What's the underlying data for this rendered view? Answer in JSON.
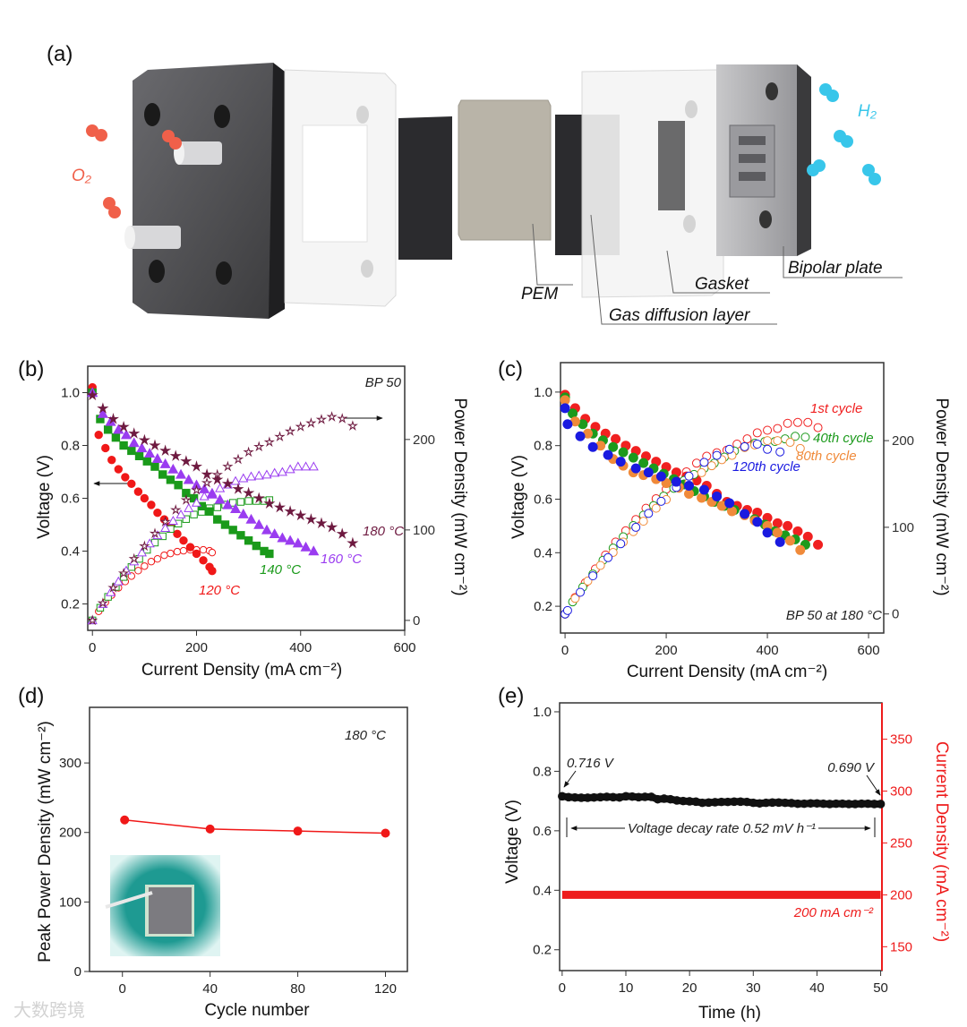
{
  "panel_labels": {
    "a": "(a)",
    "b": "(b)",
    "c": "(c)",
    "d": "(d)",
    "e": "(e)"
  },
  "panel_a": {
    "labels": {
      "pem": "PEM",
      "gasket": "Gasket",
      "bipolar_plate": "Bipolar plate",
      "gdl": "Gas diffusion layer",
      "o2": "O₂",
      "h2": "H₂"
    },
    "colors": {
      "oxygen": "#f0604a",
      "hydrogen": "#38c6ea",
      "plate": "#4a4a4c",
      "gdl": "#2b2b2e",
      "pem": "#b9b4a8"
    }
  },
  "watermark": "大数跨境",
  "chart_data": [
    {
      "id": "b",
      "type": "scatter",
      "xlabel": "Current Density (mA cm⁻²)",
      "ylabel": "Voltage (V)",
      "y2label": "Power Density (mW cm⁻²)",
      "xlim": [
        -9,
        600
      ],
      "ylim": [
        0.1,
        1.1
      ],
      "y2lim": [
        -11,
        281
      ],
      "xticks": [
        0,
        200,
        400,
        600
      ],
      "yticks": [
        0.2,
        0.4,
        0.6,
        0.8,
        1.0
      ],
      "y2ticks": [
        0,
        100,
        200
      ],
      "annotations": {
        "sample": "BP 50"
      },
      "series": [
        {
          "name": "120 °C",
          "color": "#f01818",
          "marker": "circle",
          "x": [
            0,
            12,
            25,
            37,
            50,
            63,
            75,
            88,
            100,
            113,
            125,
            138,
            150,
            163,
            175,
            188,
            200,
            213,
            225,
            230
          ],
          "voltage": [
            1.02,
            0.84,
            0.79,
            0.745,
            0.71,
            0.68,
            0.655,
            0.625,
            0.6,
            0.575,
            0.545,
            0.52,
            0.495,
            0.465,
            0.44,
            0.415,
            0.39,
            0.365,
            0.34,
            0.325
          ],
          "power": [
            0,
            10,
            20,
            28,
            36,
            43,
            49,
            55,
            60,
            65,
            68,
            72,
            74,
            76,
            77,
            78,
            78,
            78,
            77,
            75
          ]
        },
        {
          "name": "140 °C",
          "color": "#1a9a1a",
          "marker": "square",
          "x": [
            0,
            15,
            30,
            45,
            60,
            75,
            90,
            105,
            120,
            135,
            150,
            165,
            180,
            195,
            210,
            225,
            240,
            255,
            270,
            285,
            300,
            315,
            330,
            340
          ],
          "voltage": [
            1.0,
            0.9,
            0.86,
            0.83,
            0.8,
            0.78,
            0.76,
            0.74,
            0.72,
            0.69,
            0.67,
            0.65,
            0.62,
            0.6,
            0.57,
            0.55,
            0.52,
            0.5,
            0.48,
            0.46,
            0.44,
            0.42,
            0.4,
            0.39
          ],
          "power": [
            0,
            14,
            26,
            37,
            48,
            59,
            68,
            78,
            86,
            93,
            101,
            107,
            112,
            117,
            120,
            124,
            125,
            128,
            130,
            131,
            132,
            132,
            132,
            133
          ]
        },
        {
          "name": "160 °C",
          "color": "#9a3cf0",
          "marker": "triangle",
          "x": [
            0,
            20,
            35,
            50,
            65,
            80,
            95,
            110,
            125,
            140,
            155,
            170,
            185,
            200,
            215,
            230,
            245,
            260,
            275,
            290,
            305,
            320,
            335,
            350,
            365,
            380,
            395,
            410,
            425
          ],
          "voltage": [
            1.0,
            0.92,
            0.89,
            0.86,
            0.84,
            0.81,
            0.79,
            0.77,
            0.75,
            0.73,
            0.71,
            0.69,
            0.67,
            0.65,
            0.635,
            0.615,
            0.595,
            0.575,
            0.56,
            0.54,
            0.52,
            0.5,
            0.48,
            0.465,
            0.45,
            0.44,
            0.43,
            0.415,
            0.4
          ],
          "power": [
            0,
            18,
            31,
            43,
            55,
            65,
            75,
            85,
            94,
            102,
            110,
            117,
            124,
            130,
            137,
            141,
            146,
            150,
            154,
            157,
            159,
            160,
            161,
            163,
            164,
            167,
            170,
            170,
            170
          ]
        },
        {
          "name": "180 °C",
          "color": "#6e1a40",
          "marker": "star",
          "x": [
            0,
            20,
            40,
            60,
            80,
            100,
            120,
            140,
            160,
            180,
            200,
            220,
            240,
            260,
            280,
            300,
            320,
            340,
            360,
            380,
            400,
            420,
            440,
            460,
            480,
            500
          ],
          "voltage": [
            0.99,
            0.94,
            0.9,
            0.87,
            0.845,
            0.82,
            0.8,
            0.78,
            0.76,
            0.74,
            0.72,
            0.69,
            0.67,
            0.655,
            0.635,
            0.62,
            0.6,
            0.58,
            0.565,
            0.55,
            0.535,
            0.52,
            0.505,
            0.49,
            0.465,
            0.43
          ],
          "power": [
            0,
            19,
            36,
            52,
            68,
            82,
            96,
            109,
            122,
            133,
            144,
            152,
            161,
            170,
            178,
            186,
            192,
            197,
            203,
            209,
            214,
            218,
            222,
            225,
            223,
            215
          ]
        }
      ]
    },
    {
      "id": "c",
      "type": "scatter",
      "xlabel": "Current Density (mA cm⁻²)",
      "ylabel": "Voltage (V)",
      "y2label": "Power Density (mW cm⁻²)",
      "xlim": [
        -9,
        630
      ],
      "ylim": [
        0.1,
        1.11
      ],
      "y2lim": [
        -22,
        290
      ],
      "xticks": [
        0,
        200,
        400,
        600
      ],
      "yticks": [
        0.2,
        0.4,
        0.6,
        0.8,
        1.0
      ],
      "y2ticks": [
        0,
        100,
        200
      ],
      "annotations": {
        "sample": "BP 50 at 180 °C"
      },
      "series": [
        {
          "name": "1st cycle",
          "color": "#f02020",
          "x": [
            0,
            20,
            40,
            60,
            80,
            100,
            120,
            140,
            160,
            180,
            200,
            220,
            240,
            260,
            280,
            300,
            320,
            340,
            360,
            380,
            400,
            420,
            440,
            460,
            480,
            500
          ],
          "voltage": [
            0.99,
            0.94,
            0.9,
            0.87,
            0.845,
            0.825,
            0.8,
            0.78,
            0.76,
            0.74,
            0.72,
            0.7,
            0.685,
            0.67,
            0.65,
            0.62,
            0.59,
            0.575,
            0.56,
            0.55,
            0.53,
            0.51,
            0.5,
            0.48,
            0.46,
            0.43
          ],
          "power": [
            0,
            19,
            36,
            52,
            68,
            83,
            96,
            109,
            122,
            133,
            144,
            154,
            164,
            174,
            182,
            186,
            189,
            196,
            202,
            209,
            212,
            214,
            220,
            221,
            221,
            215
          ]
        },
        {
          "name": "40th cycle",
          "color": "#1c9a1c",
          "x": [
            0,
            15,
            35,
            55,
            75,
            95,
            115,
            135,
            155,
            175,
            195,
            215,
            235,
            255,
            275,
            295,
            315,
            335,
            355,
            375,
            395,
            415,
            435,
            455,
            475
          ],
          "voltage": [
            0.98,
            0.92,
            0.88,
            0.845,
            0.82,
            0.795,
            0.775,
            0.755,
            0.735,
            0.715,
            0.695,
            0.675,
            0.655,
            0.63,
            0.61,
            0.59,
            0.575,
            0.56,
            0.545,
            0.525,
            0.505,
            0.48,
            0.465,
            0.45,
            0.43
          ],
          "power": [
            0,
            14,
            31,
            46,
            62,
            76,
            89,
            102,
            114,
            125,
            136,
            145,
            154,
            161,
            168,
            174,
            181,
            188,
            193,
            197,
            199,
            199,
            202,
            205,
            204
          ]
        },
        {
          "name": "80th cycle",
          "color": "#f08a3a",
          "x": [
            0,
            20,
            45,
            70,
            95,
            115,
            135,
            155,
            180,
            200,
            225,
            245,
            270,
            290,
            310,
            330,
            355,
            375,
            400,
            420,
            445,
            465
          ],
          "voltage": [
            0.97,
            0.89,
            0.845,
            0.8,
            0.75,
            0.725,
            0.7,
            0.69,
            0.675,
            0.66,
            0.645,
            0.62,
            0.605,
            0.59,
            0.575,
            0.555,
            0.54,
            0.52,
            0.5,
            0.475,
            0.445,
            0.41
          ],
          "power": [
            0,
            18,
            38,
            56,
            71,
            83,
            95,
            107,
            122,
            132,
            145,
            152,
            163,
            171,
            178,
            183,
            192,
            195,
            200,
            200,
            198,
            191
          ]
        },
        {
          "name": "120th cycle",
          "color": "#1a1ae0",
          "x": [
            0,
            5,
            30,
            55,
            85,
            110,
            140,
            165,
            190,
            220,
            245,
            275,
            300,
            325,
            355,
            380,
            400,
            425
          ],
          "voltage": [
            0.94,
            0.88,
            0.835,
            0.795,
            0.765,
            0.74,
            0.715,
            0.7,
            0.685,
            0.665,
            0.65,
            0.635,
            0.61,
            0.585,
            0.545,
            0.515,
            0.475,
            0.44
          ],
          "power": [
            0,
            4,
            25,
            44,
            65,
            81,
            100,
            116,
            130,
            146,
            159,
            175,
            183,
            190,
            193,
            196,
            190,
            187
          ]
        }
      ]
    },
    {
      "id": "d",
      "type": "line",
      "xlabel": "Cycle number",
      "ylabel": "Peak Power Density (mW cm⁻²)",
      "xlim": [
        -15,
        130
      ],
      "ylim": [
        0,
        380
      ],
      "xticks": [
        0,
        40,
        80,
        120
      ],
      "yticks": [
        0,
        100,
        200,
        300
      ],
      "annotations": {
        "temperature": "180 °C"
      },
      "series": [
        {
          "name": "Peak power density",
          "color": "#f01818",
          "x": [
            1,
            40,
            80,
            120
          ],
          "y": [
            218,
            205,
            202,
            199
          ]
        }
      ]
    },
    {
      "id": "e",
      "type": "line",
      "xlabel": "Time (h)",
      "ylabel": "Voltage (V)",
      "y2label": "Current Density (mA cm⁻²)",
      "xlim": [
        -0.4,
        50.2
      ],
      "ylim": [
        0.13,
        1.03
      ],
      "y2lim": [
        127,
        385
      ],
      "xticks": [
        0,
        10,
        20,
        30,
        40,
        50
      ],
      "yticks": [
        0.2,
        0.4,
        0.6,
        0.8,
        1.0
      ],
      "y2ticks": [
        150,
        200,
        250,
        300,
        350
      ],
      "y2color": "#ee1c1c",
      "annotations": {
        "start": "0.716 V",
        "end": "0.690 V",
        "decay": "Voltage decay rate 0.52 mV h⁻¹",
        "current": "200 mA cm⁻²"
      },
      "series": [
        {
          "name": "Voltage",
          "axis": "left",
          "color": "#111111",
          "x_step": 1,
          "y": [
            0.716,
            0.713,
            0.712,
            0.711,
            0.711,
            0.712,
            0.713,
            0.714,
            0.713,
            0.712,
            0.716,
            0.715,
            0.713,
            0.714,
            0.714,
            0.706,
            0.708,
            0.706,
            0.702,
            0.7,
            0.699,
            0.698,
            0.694,
            0.695,
            0.696,
            0.697,
            0.697,
            0.698,
            0.698,
            0.697,
            0.694,
            0.692,
            0.694,
            0.695,
            0.695,
            0.694,
            0.693,
            0.691,
            0.691,
            0.692,
            0.692,
            0.691,
            0.69,
            0.691,
            0.691,
            0.69,
            0.69,
            0.691,
            0.691,
            0.69,
            0.69
          ]
        },
        {
          "name": "Current density",
          "axis": "right",
          "color": "#ee1c1c",
          "x": [
            0,
            50
          ],
          "y": [
            200,
            200
          ]
        }
      ]
    }
  ]
}
